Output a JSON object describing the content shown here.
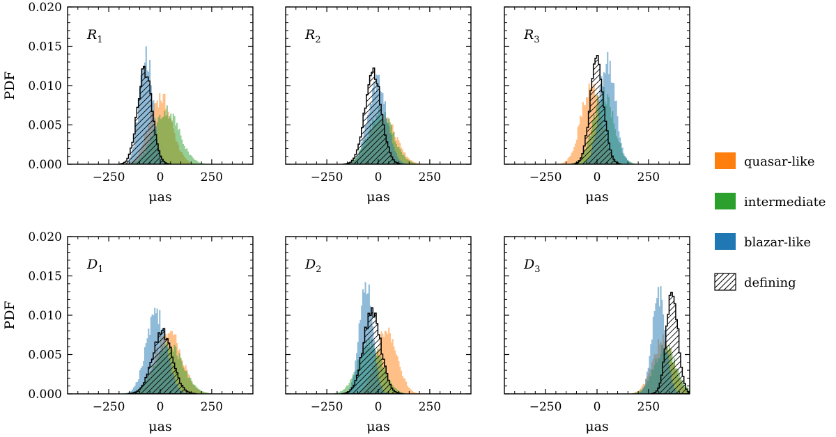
{
  "chart_data": {
    "type": "histogram-grid",
    "rows": 2,
    "cols": 3,
    "xlabel": "μas",
    "ylabel": "PDF",
    "xlim": [
      -450,
      450
    ],
    "ylim": [
      0,
      0.02
    ],
    "xticks": [
      -250,
      0,
      250
    ],
    "xtick_labels": [
      "−250",
      "0",
      "250"
    ],
    "yticks": [
      0,
      0.005,
      0.01,
      0.015,
      0.02
    ],
    "ytick_labels": [
      "0.000",
      "0.005",
      "0.010",
      "0.015",
      "0.020"
    ],
    "colors": {
      "quasar-like": "#ff7f0e",
      "intermediate": "#2ca02c",
      "blazar-like": "#1f77b4"
    },
    "legend": {
      "placement": "right",
      "entries": [
        {
          "key": "quasar-like",
          "label": "quasar-like",
          "style": "fill"
        },
        {
          "key": "intermediate",
          "label": "intermediate",
          "style": "fill"
        },
        {
          "key": "blazar-like",
          "label": "blazar-like",
          "style": "fill"
        },
        {
          "key": "defining",
          "label": "defining",
          "style": "hatch"
        }
      ]
    },
    "panels": [
      {
        "id": "R1",
        "base": "R",
        "sub": "1",
        "series": [
          {
            "name": "quasar-like",
            "components": [
              {
                "mean": 0,
                "sd": 55,
                "peak": 0.0085
              }
            ]
          },
          {
            "name": "intermediate",
            "components": [
              {
                "mean": 30,
                "sd": 62,
                "peak": 0.0068
              }
            ]
          },
          {
            "name": "blazar-like",
            "components": [
              {
                "mean": -70,
                "sd": 32,
                "peak": 0.014
              }
            ]
          },
          {
            "name": "defining",
            "components": [
              {
                "mean": -75,
                "sd": 35,
                "peak": 0.012
              }
            ]
          }
        ]
      },
      {
        "id": "R2",
        "base": "R",
        "sub": "2",
        "series": [
          {
            "name": "quasar-like",
            "components": [
              {
                "mean": 20,
                "sd": 62,
                "peak": 0.0062
              }
            ]
          },
          {
            "name": "intermediate",
            "components": [
              {
                "mean": 10,
                "sd": 60,
                "peak": 0.0065
              }
            ]
          },
          {
            "name": "blazar-like",
            "components": [
              {
                "mean": -5,
                "sd": 45,
                "peak": 0.0105
              }
            ]
          },
          {
            "name": "defining",
            "components": [
              {
                "mean": -25,
                "sd": 40,
                "peak": 0.0118
              }
            ]
          }
        ]
      },
      {
        "id": "R3",
        "base": "R",
        "sub": "3",
        "series": [
          {
            "name": "quasar-like",
            "components": [
              {
                "mean": -30,
                "sd": 48,
                "peak": 0.01
              }
            ]
          },
          {
            "name": "intermediate",
            "components": [
              {
                "mean": 30,
                "sd": 50,
                "peak": 0.009
              }
            ]
          },
          {
            "name": "blazar-like",
            "components": [
              {
                "mean": 50,
                "sd": 38,
                "peak": 0.0135
              }
            ]
          },
          {
            "name": "defining",
            "components": [
              {
                "mean": 0,
                "sd": 33,
                "peak": 0.0132
              }
            ]
          }
        ]
      },
      {
        "id": "D1",
        "base": "D",
        "sub": "1",
        "series": [
          {
            "name": "quasar-like",
            "components": [
              {
                "mean": 40,
                "sd": 62,
                "peak": 0.008
              }
            ]
          },
          {
            "name": "intermediate",
            "components": [
              {
                "mean": 40,
                "sd": 68,
                "peak": 0.0062
              }
            ]
          },
          {
            "name": "blazar-like",
            "components": [
              {
                "mean": -20,
                "sd": 48,
                "peak": 0.0102
              }
            ]
          },
          {
            "name": "defining",
            "components": [
              {
                "mean": 10,
                "sd": 48,
                "peak": 0.0078
              }
            ]
          }
        ]
      },
      {
        "id": "D2",
        "base": "D",
        "sub": "2",
        "series": [
          {
            "name": "quasar-like",
            "components": [
              {
                "mean": 40,
                "sd": 50,
                "peak": 0.0082
              }
            ]
          },
          {
            "name": "intermediate",
            "components": [
              {
                "mean": -40,
                "sd": 58,
                "peak": 0.0065
              }
            ]
          },
          {
            "name": "blazar-like",
            "components": [
              {
                "mean": -60,
                "sd": 32,
                "peak": 0.014
              }
            ]
          },
          {
            "name": "defining",
            "components": [
              {
                "mean": -30,
                "sd": 42,
                "peak": 0.0105
              }
            ]
          }
        ]
      },
      {
        "id": "D3",
        "base": "D",
        "sub": "3",
        "series": [
          {
            "name": "quasar-like",
            "components": [
              {
                "mean": 320,
                "sd": 50,
                "peak": 0.0068
              }
            ]
          },
          {
            "name": "intermediate",
            "components": [
              {
                "mean": 330,
                "sd": 52,
                "peak": 0.006
              }
            ]
          },
          {
            "name": "blazar-like",
            "components": [
              {
                "mean": 300,
                "sd": 32,
                "peak": 0.0125
              }
            ]
          },
          {
            "name": "defining",
            "components": [
              {
                "mean": 365,
                "sd": 28,
                "peak": 0.0132
              }
            ]
          }
        ]
      }
    ]
  }
}
